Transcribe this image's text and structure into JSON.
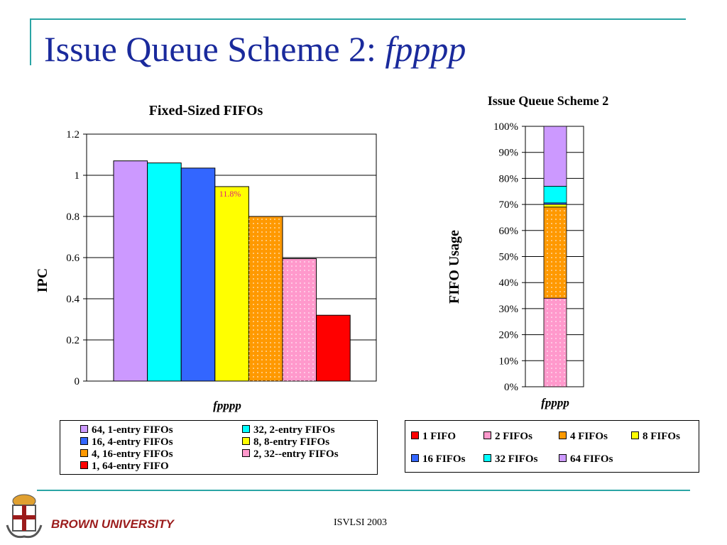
{
  "slide": {
    "title_main": "Issue Queue Scheme 2: ",
    "title_italic": "fpppp",
    "footer": "ISVLSI 2003",
    "brand": "BROWN UNIVERSITY"
  },
  "chart_data": [
    {
      "type": "bar",
      "title": "Fixed-Sized FIFOs",
      "xlabel": "fpppp",
      "ylabel": "IPC",
      "ylim": [
        0,
        1.2
      ],
      "yticks": [
        "0",
        "0.2",
        "0.4",
        "0.6",
        "0.8",
        "1",
        "1.2"
      ],
      "annotation": "11.8%",
      "series": [
        {
          "name": "64, 1-entry FIFOs",
          "value": 1.07,
          "color": "#cc99ff"
        },
        {
          "name": "32, 2-entry FIFOs",
          "value": 1.06,
          "color": "#00ffff"
        },
        {
          "name": "16, 4-entry FIFOs",
          "value": 1.035,
          "color": "#3366ff"
        },
        {
          "name": "8, 8-entry FIFOs",
          "value": 0.945,
          "color": "#ffff00"
        },
        {
          "name": "4, 16-entry FIFOs",
          "value": 0.8,
          "color": "#ff9900"
        },
        {
          "name": "2, 32--entry FIFOs",
          "value": 0.595,
          "color": "#ff99cc"
        },
        {
          "name": "1, 64-entry FIFO",
          "value": 0.32,
          "color": "#ff0000"
        }
      ]
    },
    {
      "type": "bar",
      "stacked": true,
      "title": "Issue Queue Scheme 2",
      "xlabel": "fpppp",
      "ylabel": "FIFO Usage",
      "ylim": [
        0,
        100
      ],
      "yticks": [
        "0%",
        "10%",
        "20%",
        "30%",
        "40%",
        "50%",
        "60%",
        "70%",
        "80%",
        "90%",
        "100%"
      ],
      "series": [
        {
          "name": "1 FIFO",
          "value": 0,
          "color": "#ff0000"
        },
        {
          "name": "2 FIFOs",
          "value": 34,
          "color": "#ff99cc"
        },
        {
          "name": "4 FIFOs",
          "value": 35,
          "color": "#ff9900"
        },
        {
          "name": "8 FIFOs",
          "value": 1,
          "color": "#ffff00"
        },
        {
          "name": "16 FIFOs",
          "value": 0.6,
          "color": "#3366ff"
        },
        {
          "name": "32 FIFOs",
          "value": 6.4,
          "color": "#00ffff"
        },
        {
          "name": "64 FIFOs",
          "value": 23,
          "color": "#cc99ff"
        }
      ]
    }
  ]
}
